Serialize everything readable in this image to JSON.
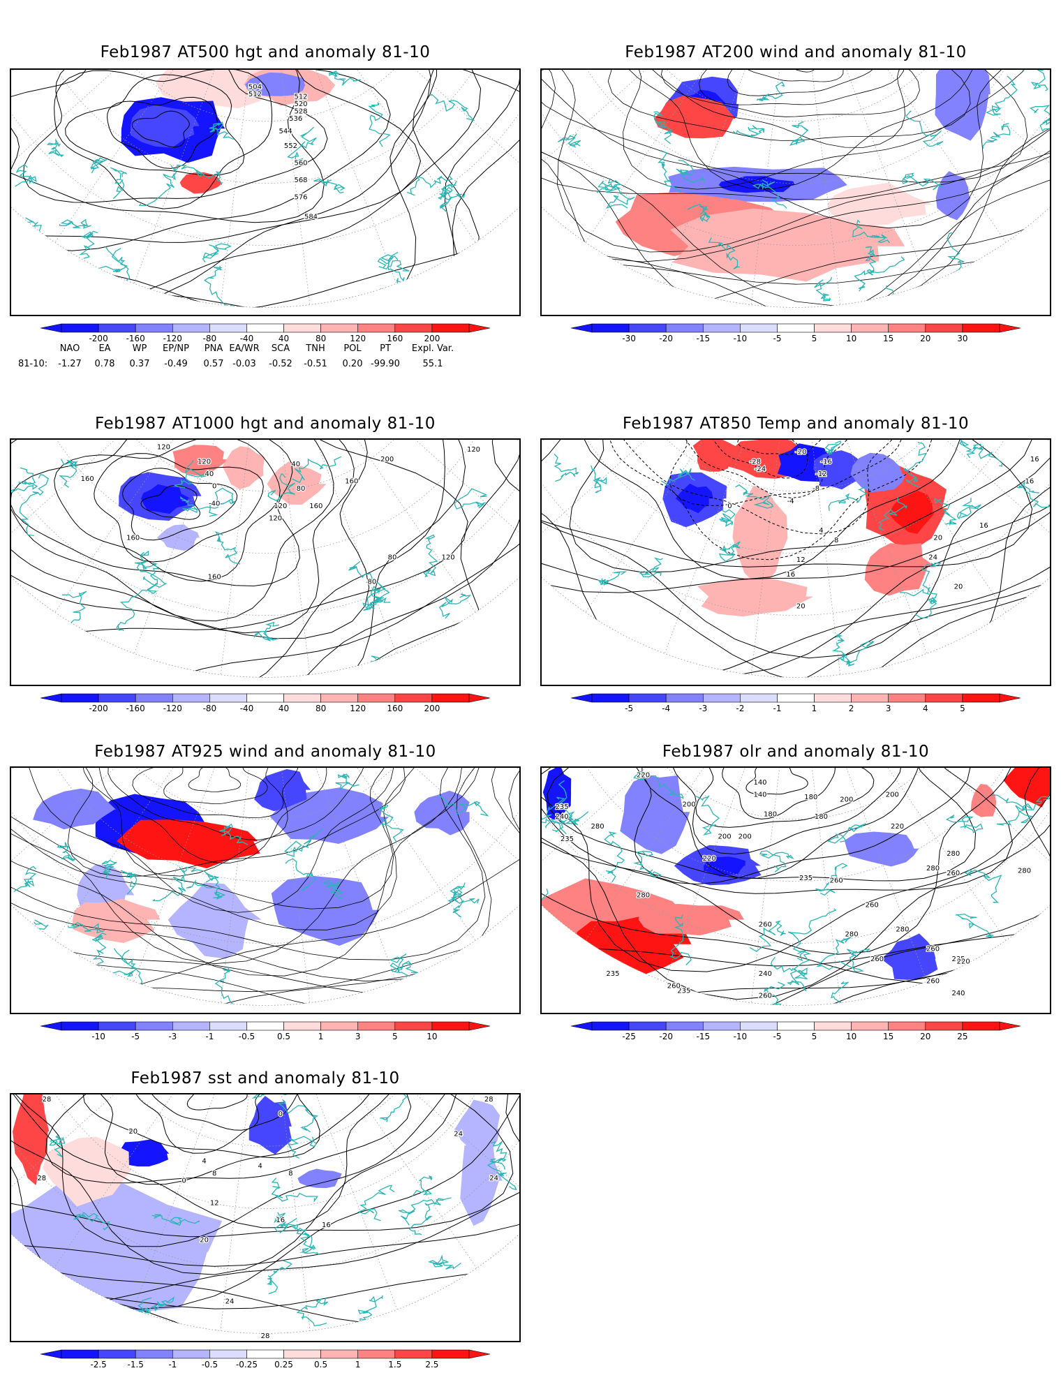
{
  "panels": [
    {
      "id": "p1",
      "title": "Feb1987 AT500 hgt and anomaly 81-10",
      "field": "hgt",
      "contour_labels": [
        "504",
        "512",
        "512",
        "520",
        "528",
        "536",
        "544",
        "552",
        "560",
        "568",
        "576",
        "584"
      ],
      "colorbar": [
        "-200",
        "-160",
        "-120",
        "-80",
        "-40",
        "40",
        "80",
        "120",
        "160",
        "200"
      ]
    },
    {
      "id": "p2",
      "title": "Feb1987 AT200 wind and anomaly 81-10",
      "field": "wind",
      "contour_labels": [],
      "colorbar": [
        "-30",
        "-20",
        "-15",
        "-10",
        "-5",
        "5",
        "10",
        "15",
        "20",
        "30"
      ]
    },
    {
      "id": "p3",
      "title": "Feb1987 AT1000 hgt and anomaly 81-10",
      "field": "hgt",
      "contour_labels": [
        "120",
        "160",
        "120",
        "40",
        "0",
        "-40",
        "40",
        "80",
        "120",
        "160",
        "160",
        "200",
        "120",
        "160",
        "160",
        "120",
        "80",
        "120",
        "80"
      ],
      "colorbar": [
        "-200",
        "-160",
        "-120",
        "-80",
        "-40",
        "40",
        "80",
        "120",
        "160",
        "200"
      ]
    },
    {
      "id": "p4",
      "title": "Feb1987 AT850 Temp and anomaly 81-10",
      "field": "temp",
      "contour_labels": [
        "-20",
        "-16",
        "-12",
        "-28",
        "-24",
        "-8",
        "-4",
        "0",
        "4",
        "8",
        "12",
        "16",
        "16",
        "16",
        "16",
        "20",
        "24",
        "20",
        "20"
      ],
      "colorbar": [
        "-5",
        "-4",
        "-3",
        "-2",
        "-1",
        "1",
        "2",
        "3",
        "4",
        "5"
      ]
    },
    {
      "id": "p5",
      "title": "Feb1987 AT925 wind and anomaly 81-10",
      "field": "wind",
      "contour_labels": [],
      "colorbar": [
        "-10",
        "-5",
        "-3",
        "-1",
        "-0.5",
        "0.5",
        "1",
        "3",
        "5",
        "10"
      ]
    },
    {
      "id": "p6",
      "title": "Feb1987 olr and anomaly 81-10",
      "field": "olr",
      "contour_labels": [
        "220",
        "140",
        "200",
        "140",
        "180",
        "180",
        "200",
        "180",
        "200",
        "235",
        "240",
        "280",
        "235",
        "220",
        "200",
        "200",
        "220",
        "235",
        "260",
        "280",
        "280",
        "260",
        "280",
        "235",
        "260",
        "280",
        "280",
        "260",
        "260",
        "235",
        "220",
        "235",
        "260",
        "260",
        "240",
        "280",
        "240",
        "260",
        "260"
      ],
      "colorbar": [
        "-25",
        "-20",
        "-15",
        "-10",
        "-5",
        "5",
        "10",
        "15",
        "20",
        "25"
      ]
    },
    {
      "id": "p7",
      "title": "Feb1987 sst and anomaly 81-10",
      "field": "sst",
      "contour_labels": [
        "28",
        "20",
        "0",
        "28",
        "0",
        "4",
        "8",
        "12",
        "4",
        "16",
        "8",
        "24",
        "16",
        "20",
        "24",
        "28",
        "24",
        "28"
      ],
      "colorbar": [
        "-2.5",
        "-1.5",
        "-1",
        "-0.5",
        "-0.25",
        "0.25",
        "0.5",
        "1",
        "1.5",
        "2.5"
      ]
    }
  ],
  "teleconnections": {
    "headers": [
      "NAO",
      "EA",
      "WP",
      "EP/NP",
      "PNA",
      "EA/WR",
      "SCA",
      "TNH",
      "POL",
      "PT",
      "Expl. Var."
    ],
    "row_label": "81-10:",
    "values": [
      "-1.27",
      "0.78",
      "0.37",
      "-0.49",
      "0.57",
      "-0.03",
      "-0.52",
      "-0.51",
      "0.20",
      "-99.90",
      "55.1"
    ]
  },
  "colors": {
    "coast": "#2ab5b5",
    "blue_scale": [
      "#1414ff",
      "#4646ff",
      "#8282ff",
      "#b4b4ff",
      "#dcdcff"
    ],
    "red_scale": [
      "#ffdcdc",
      "#ffb4b4",
      "#ff8282",
      "#ff4646",
      "#ff1414"
    ],
    "contour": "#000000"
  }
}
